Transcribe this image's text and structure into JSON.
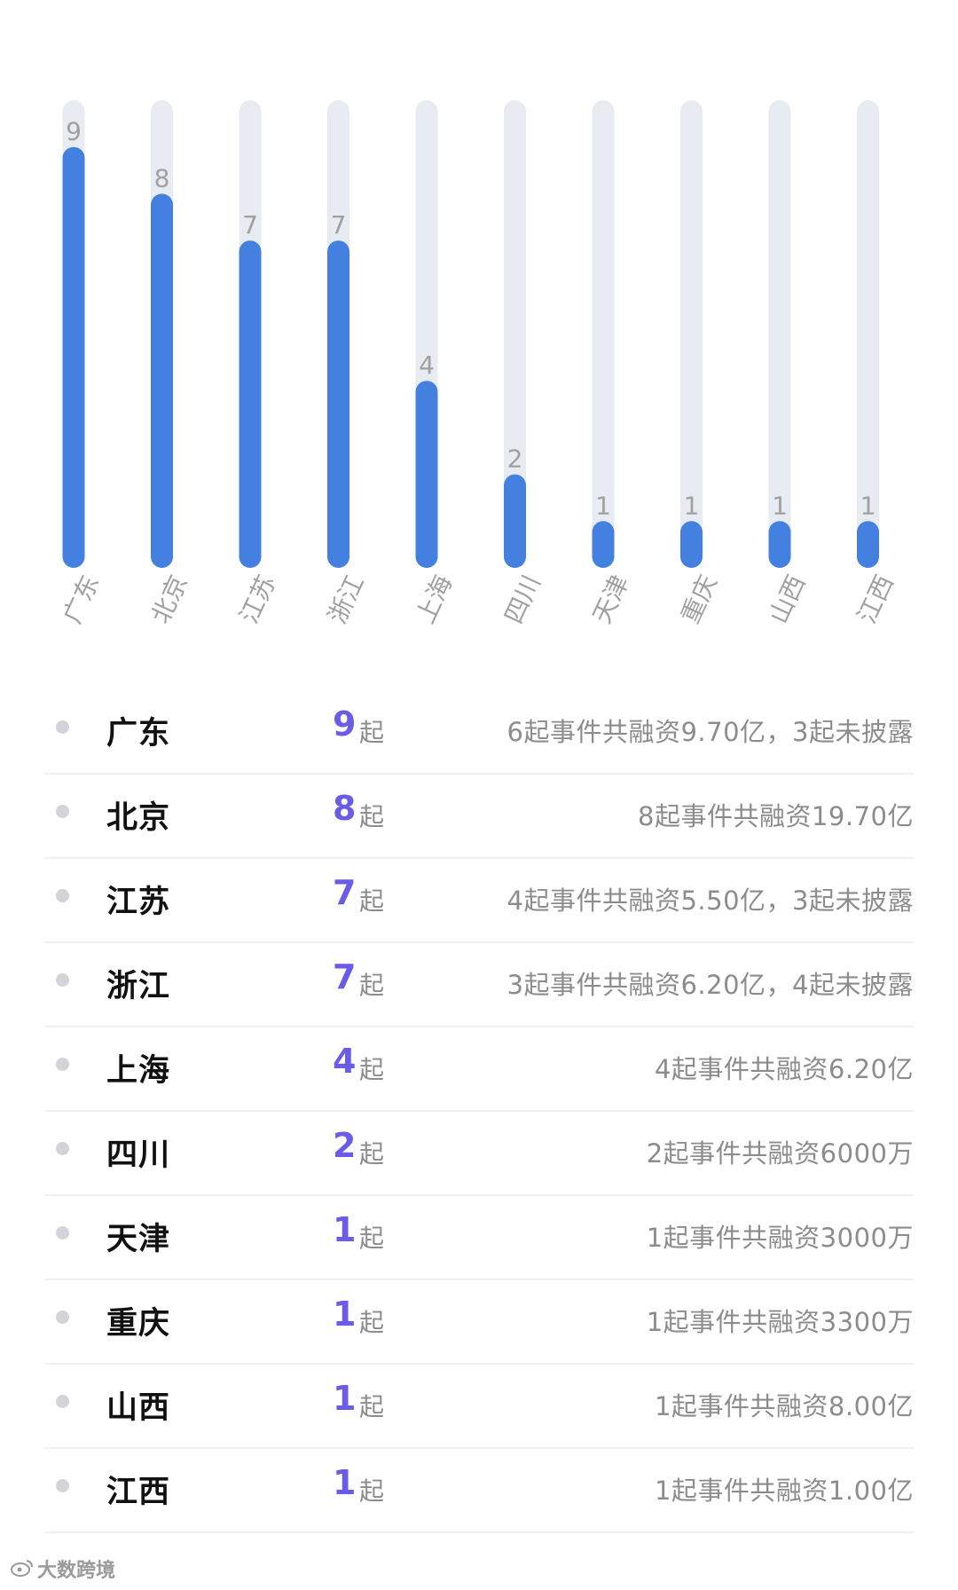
{
  "chart_data": {
    "type": "bar",
    "categories": [
      "广东",
      "北京",
      "江苏",
      "浙江",
      "上海",
      "四川",
      "天津",
      "重庆",
      "山西",
      "江西"
    ],
    "values": [
      9,
      8,
      7,
      7,
      4,
      2,
      1,
      1,
      1,
      1
    ],
    "ylim": [
      0,
      10
    ],
    "grid": false,
    "legend": "none",
    "colors": {
      "bar": "#4480e0",
      "track": "#e9ebf2",
      "label": "#a0a0a0"
    }
  },
  "table": {
    "rows": [
      {
        "name": "广东",
        "count": "9",
        "unit": "起",
        "detail": "6起事件共融资9.70亿，3起未披露"
      },
      {
        "name": "北京",
        "count": "8",
        "unit": "起",
        "detail": "8起事件共融资19.70亿"
      },
      {
        "name": "江苏",
        "count": "7",
        "unit": "起",
        "detail": "4起事件共融资5.50亿，3起未披露"
      },
      {
        "name": "浙江",
        "count": "7",
        "unit": "起",
        "detail": "3起事件共融资6.20亿，4起未披露"
      },
      {
        "name": "上海",
        "count": "4",
        "unit": "起",
        "detail": "4起事件共融资6.20亿"
      },
      {
        "name": "四川",
        "count": "2",
        "unit": "起",
        "detail": "2起事件共融资6000万"
      },
      {
        "name": "天津",
        "count": "1",
        "unit": "起",
        "detail": "1起事件共融资3000万"
      },
      {
        "name": "重庆",
        "count": "1",
        "unit": "起",
        "detail": "1起事件共融资3300万"
      },
      {
        "name": "山西",
        "count": "1",
        "unit": "起",
        "detail": "1起事件共融资8.00亿"
      },
      {
        "name": "江西",
        "count": "1",
        "unit": "起",
        "detail": "1起事件共融资1.00亿"
      }
    ]
  },
  "footer": {
    "brand": "大数跨境",
    "icon": "weibo-icon"
  }
}
